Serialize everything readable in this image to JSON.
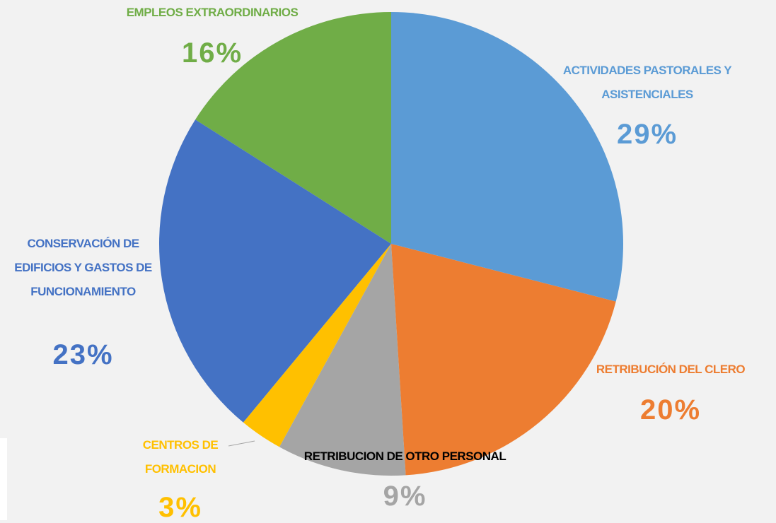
{
  "chart_data": {
    "type": "pie",
    "categories": [
      "ACTIVIDADES PASTORALES Y ASISTENCIALES",
      "RETRIBUCIÓN DEL CLERO",
      "RETRIBUCION DE OTRO PERSONAL",
      "CENTROS DE FORMACION",
      "CONSERVACIÓN DE EDIFICIOS Y GASTOS DE FUNCIONAMIENTO",
      "EMPLEOS EXTRAORDINARIOS"
    ],
    "values": [
      29,
      20,
      9,
      3,
      23,
      16
    ],
    "value_labels": [
      "29%",
      "20%",
      "9%",
      "3%",
      "23%",
      "16%"
    ],
    "colors": [
      "#5b9bd5",
      "#ed7d31",
      "#a5a5a5",
      "#ffc000",
      "#4472c4",
      "#70ad47"
    ]
  }
}
